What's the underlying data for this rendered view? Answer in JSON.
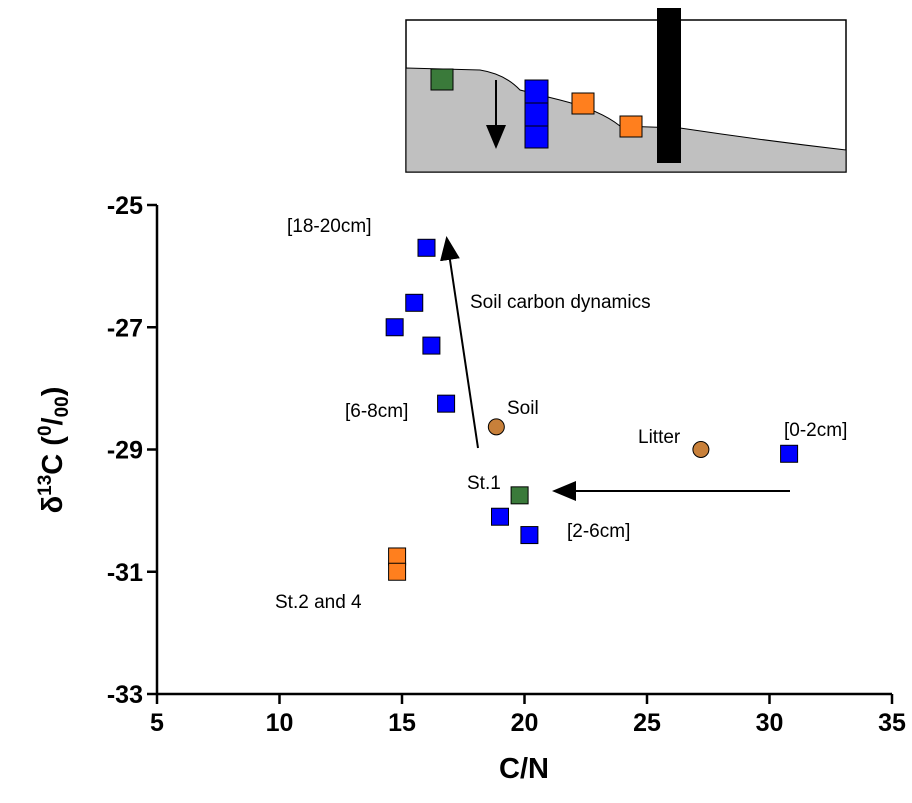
{
  "chart_data": {
    "type": "scatter",
    "xlabel": "C/N",
    "ylabel_parts": [
      "δ",
      "13",
      "C (",
      "0",
      "/",
      "00",
      ")"
    ],
    "xlim": [
      5,
      35
    ],
    "xticks": [
      5,
      10,
      15,
      20,
      25,
      30,
      35
    ],
    "ylim": [
      -33,
      -25
    ],
    "yticks": [
      -25,
      -27,
      -29,
      -31,
      -33
    ],
    "series": [
      {
        "color": "#0000ff",
        "marker": "square",
        "x": [
          16.0,
          15.5,
          14.7,
          16.2,
          16.8,
          30.8,
          19.0,
          20.2
        ],
        "values": [
          -25.7,
          -26.6,
          -27.0,
          -27.3,
          -28.25,
          -29.07,
          -30.1,
          -30.4
        ]
      },
      {
        "color": "#3a7a3a",
        "marker": "square",
        "x": [
          19.8
        ],
        "values": [
          -29.75
        ]
      },
      {
        "color": "#ff7f1e",
        "marker": "square",
        "x": [
          14.8,
          14.8
        ],
        "values": [
          -30.75,
          -31.0
        ]
      },
      {
        "color": "#c8803a",
        "marker": "circle",
        "x": [
          18.85,
          27.2
        ],
        "values": [
          -28.63,
          -29.0
        ]
      }
    ],
    "annotations": [
      "[18-20cm]",
      "Soil carbon dynamics",
      "[6-8cm]",
      "Soil",
      "Litter",
      "[0-2cm]",
      "St.1",
      "[2-6cm]",
      "St.2 and 4"
    ]
  }
}
